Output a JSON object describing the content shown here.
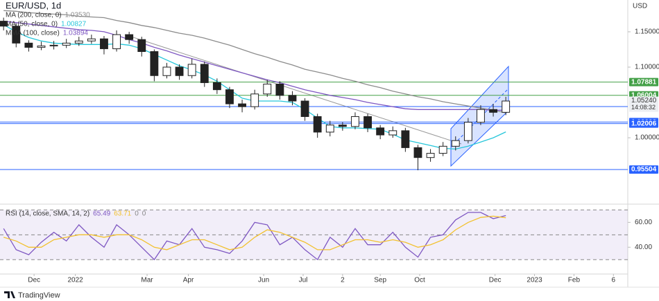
{
  "brand": "TradingView",
  "chart_data": [
    {
      "type": "candlestick",
      "title": "EUR/USD, 1d",
      "unit": "USD",
      "xlim": [
        0,
        350
      ],
      "ylim": [
        0.909,
        1.195
      ],
      "yticks": [
        {
          "value": 1.15,
          "label": "1.15000"
        },
        {
          "value": 1.1,
          "label": "1.10000"
        },
        {
          "value": 1.0,
          "label": "1.00000"
        }
      ],
      "x": [
        2,
        9,
        16,
        23,
        30,
        37,
        44,
        51,
        58,
        65,
        72,
        79,
        86,
        93,
        100,
        107,
        114,
        121,
        128,
        135,
        142,
        149,
        156,
        163,
        170,
        177,
        184,
        191,
        198,
        205,
        212,
        219,
        226,
        233,
        240,
        247,
        254,
        261,
        268,
        275,
        282
      ],
      "open": [
        1.165,
        1.158,
        1.134,
        1.128,
        1.13,
        1.131,
        1.134,
        1.137,
        1.14,
        1.126,
        1.146,
        1.139,
        1.122,
        1.088,
        1.1,
        1.088,
        1.104,
        1.078,
        1.068,
        1.048,
        1.044,
        1.062,
        1.076,
        1.06,
        1.052,
        1.03,
        1.008,
        1.018,
        1.016,
        1.03,
        1.014,
        1.004,
        1.01,
        0.986,
        0.972,
        0.978,
        0.988,
        0.996,
        1.022,
        1.04,
        1.036
      ],
      "high": [
        1.17,
        1.162,
        1.138,
        1.136,
        1.137,
        1.14,
        1.143,
        1.146,
        1.144,
        1.152,
        1.15,
        1.143,
        1.125,
        1.106,
        1.104,
        1.112,
        1.108,
        1.084,
        1.072,
        1.054,
        1.068,
        1.082,
        1.08,
        1.066,
        1.056,
        1.034,
        1.024,
        1.022,
        1.036,
        1.034,
        1.018,
        1.016,
        1.014,
        0.99,
        0.984,
        0.994,
        1.002,
        1.028,
        1.046,
        1.048,
        1.058
      ],
      "low": [
        1.152,
        1.128,
        1.122,
        1.124,
        1.125,
        1.127,
        1.13,
        1.133,
        1.118,
        1.122,
        1.133,
        1.115,
        1.08,
        1.084,
        1.082,
        1.084,
        1.072,
        1.062,
        1.042,
        1.036,
        1.04,
        1.058,
        1.054,
        1.046,
        1.024,
        1.0,
        1.002,
        1.01,
        1.012,
        1.008,
        0.998,
        1.0,
        0.98,
        0.954,
        0.966,
        0.974,
        0.982,
        0.992,
        1.018,
        1.03,
        1.032
      ],
      "close": [
        1.158,
        1.134,
        1.128,
        1.13,
        1.131,
        1.134,
        1.137,
        1.14,
        1.126,
        1.146,
        1.139,
        1.122,
        1.088,
        1.1,
        1.088,
        1.104,
        1.078,
        1.068,
        1.048,
        1.044,
        1.062,
        1.076,
        1.06,
        1.052,
        1.03,
        1.008,
        1.018,
        1.016,
        1.03,
        1.014,
        1.004,
        1.01,
        0.986,
        0.972,
        0.978,
        0.988,
        0.996,
        1.022,
        1.04,
        1.036,
        1.052
      ],
      "up_color": "#ffffff",
      "down_color": "#222222",
      "series": [
        {
          "name": "MA (200, close, 0)",
          "value_label": "1.03530",
          "color": "#8c8c8c",
          "values": [
            1.18,
            1.179,
            1.177,
            1.176,
            1.175,
            1.174,
            1.172,
            1.171,
            1.17,
            1.166,
            1.163,
            1.159,
            1.156,
            1.152,
            1.148,
            1.145,
            1.141,
            1.136,
            1.131,
            1.125,
            1.119,
            1.114,
            1.108,
            1.103,
            1.097,
            1.093,
            1.089,
            1.084,
            1.08,
            1.075,
            1.071,
            1.066,
            1.062,
            1.058,
            1.055,
            1.051,
            1.048,
            1.045,
            1.042,
            1.039,
            1.0353
          ]
        },
        {
          "name": "MA (50, close, 0)",
          "value_label": "1.00827",
          "color": "#26c6da",
          "values": [
            1.16,
            1.15,
            1.142,
            1.137,
            1.134,
            1.133,
            1.132,
            1.132,
            1.132,
            1.133,
            1.131,
            1.126,
            1.118,
            1.11,
            1.102,
            1.096,
            1.089,
            1.08,
            1.068,
            1.056,
            1.052,
            1.052,
            1.052,
            1.05,
            1.04,
            1.028,
            1.016,
            1.014,
            1.014,
            1.013,
            1.012,
            1.005,
            0.997,
            0.993,
            0.989,
            0.985,
            0.984,
            0.988,
            0.994,
            1.0,
            1.00827
          ]
        },
        {
          "name": "MMA (100, close)",
          "value_label": "1.03894",
          "color": "#7e57c2",
          "values": [
            1.165,
            1.163,
            1.161,
            1.159,
            1.157,
            1.155,
            1.153,
            1.152,
            1.15,
            1.145,
            1.139,
            1.134,
            1.128,
            1.123,
            1.117,
            1.112,
            1.107,
            1.102,
            1.097,
            1.092,
            1.087,
            1.082,
            1.078,
            1.073,
            1.068,
            1.064,
            1.06,
            1.057,
            1.054,
            1.05,
            1.047,
            1.044,
            1.041,
            1.04,
            1.04,
            1.04,
            1.04,
            1.04,
            1.04,
            1.039,
            1.03894
          ]
        }
      ],
      "levels": [
        {
          "value": 1.07881,
          "color": "#43a047"
        },
        {
          "value": 1.06004,
          "color": "#43a047"
        },
        {
          "value": 1.04412,
          "color": "#2962ff"
        },
        {
          "value": 1.02228,
          "color": "#2962ff"
        },
        {
          "value": 1.02006,
          "color": "#2962ff"
        },
        {
          "value": 0.95504,
          "color": "#2962ff"
        }
      ],
      "last_price": {
        "value": 1.0524,
        "label": "1.05240",
        "countdown": "14:08:32"
      }
    },
    {
      "type": "line",
      "title": "RSI (14, close, SMA, 14, 2)",
      "extra_labels": [
        "0",
        "0"
      ],
      "xlim": [
        0,
        350
      ],
      "ylim": [
        19,
        73
      ],
      "yticks": [
        {
          "value": 60,
          "label": "60.00"
        },
        {
          "value": 40,
          "label": "40.00"
        }
      ],
      "band": [
        30,
        70
      ],
      "midline": 50,
      "xticks": [
        {
          "value": 19,
          "label": "Dec"
        },
        {
          "value": 42,
          "label": "2022"
        },
        {
          "value": 82,
          "label": "Mar"
        },
        {
          "value": 105,
          "label": "Apr"
        },
        {
          "value": 147,
          "label": "Jun"
        },
        {
          "value": 169,
          "label": "Jul"
        },
        {
          "value": 191,
          "label": "2"
        },
        {
          "value": 212,
          "label": "Sep"
        },
        {
          "value": 234,
          "label": "Oct"
        },
        {
          "value": 276,
          "label": "Dec"
        },
        {
          "value": 298,
          "label": "2023"
        },
        {
          "value": 320,
          "label": "Feb"
        },
        {
          "value": 342,
          "label": "6"
        }
      ],
      "x": [
        2,
        9,
        16,
        23,
        30,
        37,
        44,
        51,
        58,
        65,
        72,
        79,
        86,
        93,
        100,
        107,
        114,
        121,
        128,
        135,
        142,
        149,
        156,
        163,
        170,
        177,
        184,
        191,
        198,
        205,
        212,
        219,
        226,
        233,
        240,
        247,
        254,
        261,
        268,
        275,
        282
      ],
      "series": [
        {
          "value_label": "65.49",
          "color": "#7e57c2",
          "values": [
            55,
            38,
            34,
            44,
            52,
            45,
            58,
            48,
            40,
            58,
            50,
            40,
            30,
            45,
            42,
            55,
            40,
            38,
            35,
            45,
            60,
            58,
            42,
            48,
            38,
            30,
            48,
            40,
            55,
            42,
            42,
            52,
            40,
            32,
            48,
            50,
            62,
            68,
            68,
            63,
            65.49
          ]
        },
        {
          "value_label": "63.71",
          "color": "#f2c12e",
          "values": [
            48,
            45,
            40,
            40,
            46,
            48,
            50,
            50,
            48,
            50,
            50,
            46,
            40,
            38,
            42,
            46,
            46,
            42,
            38,
            40,
            48,
            54,
            52,
            48,
            44,
            38,
            38,
            42,
            46,
            46,
            44,
            46,
            44,
            40,
            42,
            46,
            54,
            60,
            64,
            65,
            63.71
          ]
        }
      ]
    }
  ]
}
